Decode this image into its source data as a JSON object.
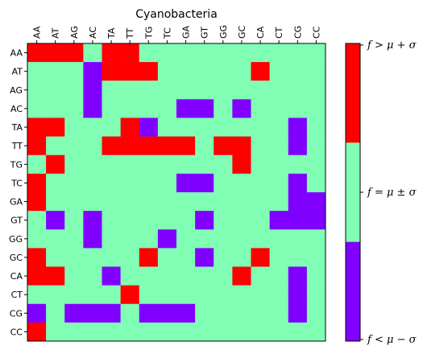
{
  "chart_data": {
    "type": "heatmap",
    "title": "Cyanobacteria",
    "xlabel": "",
    "ylabel": "",
    "x_categories": [
      "AA",
      "AT",
      "AG",
      "AC",
      "TA",
      "TT",
      "TG",
      "TC",
      "GA",
      "GT",
      "GG",
      "GC",
      "CA",
      "CT",
      "CG",
      "CC"
    ],
    "y_categories": [
      "AA",
      "AT",
      "AG",
      "AC",
      "TA",
      "TT",
      "TG",
      "TC",
      "GA",
      "GT",
      "GG",
      "GC",
      "CA",
      "CT",
      "CG",
      "CC"
    ],
    "levels": [
      {
        "value": -1,
        "color": "#8000ff",
        "label": "f < μ − σ"
      },
      {
        "value": 0,
        "color": "#80ffb4",
        "label": "f = μ ± σ"
      },
      {
        "value": 1,
        "color": "#ff0000",
        "label": "f > μ + σ"
      }
    ],
    "values": [
      [
        1,
        1,
        1,
        0,
        1,
        1,
        0,
        0,
        0,
        0,
        0,
        0,
        0,
        0,
        0,
        0
      ],
      [
        0,
        0,
        0,
        -1,
        1,
        1,
        1,
        0,
        0,
        0,
        0,
        0,
        1,
        0,
        0,
        0
      ],
      [
        0,
        0,
        0,
        -1,
        0,
        0,
        0,
        0,
        0,
        0,
        0,
        0,
        0,
        0,
        0,
        0
      ],
      [
        0,
        0,
        0,
        -1,
        0,
        0,
        0,
        0,
        -1,
        -1,
        0,
        -1,
        0,
        0,
        0,
        0
      ],
      [
        1,
        1,
        0,
        0,
        0,
        1,
        -1,
        0,
        0,
        0,
        0,
        0,
        0,
        0,
        -1,
        0
      ],
      [
        1,
        0,
        0,
        0,
        1,
        1,
        1,
        1,
        1,
        0,
        1,
        1,
        0,
        0,
        -1,
        0
      ],
      [
        0,
        1,
        0,
        0,
        0,
        0,
        0,
        0,
        0,
        0,
        0,
        1,
        0,
        0,
        0,
        0
      ],
      [
        1,
        0,
        0,
        0,
        0,
        0,
        0,
        0,
        -1,
        -1,
        0,
        0,
        0,
        0,
        -1,
        0
      ],
      [
        1,
        0,
        0,
        0,
        0,
        0,
        0,
        0,
        0,
        0,
        0,
        0,
        0,
        0,
        -1,
        -1
      ],
      [
        0,
        -1,
        0,
        -1,
        0,
        0,
        0,
        0,
        0,
        -1,
        0,
        0,
        0,
        -1,
        -1,
        -1
      ],
      [
        0,
        0,
        0,
        -1,
        0,
        0,
        0,
        -1,
        0,
        0,
        0,
        0,
        0,
        0,
        0,
        0
      ],
      [
        1,
        0,
        0,
        0,
        0,
        0,
        1,
        0,
        0,
        -1,
        0,
        0,
        1,
        0,
        0,
        0
      ],
      [
        1,
        1,
        0,
        0,
        -1,
        0,
        0,
        0,
        0,
        0,
        0,
        1,
        0,
        0,
        -1,
        0
      ],
      [
        0,
        0,
        0,
        0,
        0,
        1,
        0,
        0,
        0,
        0,
        0,
        0,
        0,
        0,
        -1,
        0
      ],
      [
        -1,
        0,
        -1,
        -1,
        -1,
        0,
        -1,
        -1,
        -1,
        0,
        0,
        0,
        0,
        0,
        -1,
        0
      ],
      [
        1,
        0,
        0,
        0,
        0,
        0,
        0,
        0,
        0,
        0,
        0,
        0,
        0,
        0,
        0,
        0
      ]
    ],
    "colorbar": {
      "ticks": [
        "f > μ + σ",
        "f = μ ± σ",
        "f < μ − σ"
      ]
    },
    "grid": false
  }
}
